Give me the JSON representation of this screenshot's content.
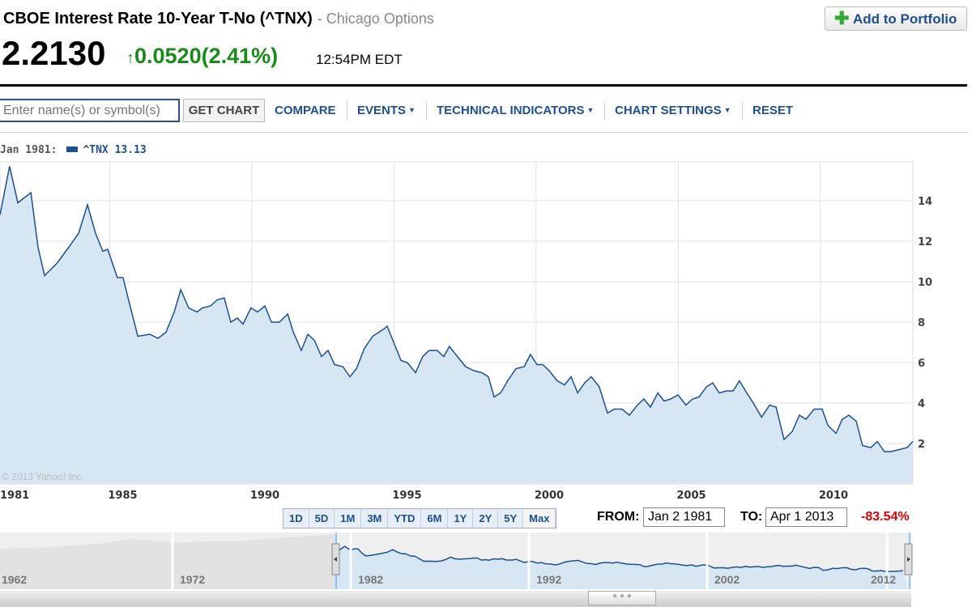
{
  "header": {
    "title": "CBOE Interest Rate 10-Year T-No (^TNX)",
    "exchange": "- Chicago Options",
    "price": "2.2130",
    "change": "0.0520",
    "change_pct": "(2.41%)",
    "time": "12:54PM EDT",
    "add_portfolio": "Add to Portfolio",
    "up_icon": "arrow-up-icon"
  },
  "toolbar": {
    "placeholder": "Enter name(s) or symbol(s)",
    "get_chart": "GET CHART",
    "items": [
      "COMPARE",
      "EVENTS",
      "TECHNICAL INDICATORS",
      "CHART SETTINGS",
      "RESET"
    ]
  },
  "legend": {
    "date": "Jan 1981:",
    "series": "^TNX 13.13"
  },
  "copyright": "© 2013 Yahoo! Inc.",
  "ranges": [
    "1D",
    "5D",
    "1M",
    "3M",
    "YTD",
    "6M",
    "1Y",
    "2Y",
    "5Y",
    "Max"
  ],
  "selected_range": "Max",
  "from_label": "FROM:",
  "from_value": "Jan 2 1981",
  "to_label": "TO:",
  "to_value": "Apr 1 2013",
  "period_change": "-83.54%",
  "navigator": {
    "labels": [
      "1962",
      "1972",
      "1982",
      "1992",
      "2002",
      "2012"
    ]
  },
  "colors": {
    "line": "#1d4f91",
    "fill": "#d6e6f3",
    "up": "#1a8a1a",
    "down": "#dd0000"
  },
  "chart_data": {
    "type": "area",
    "series": [
      {
        "name": "^TNX",
        "points": [
          [
            1981.14,
            13.3
          ],
          [
            1981.48,
            15.7
          ],
          [
            1981.77,
            13.9
          ],
          [
            1982.23,
            14.4
          ],
          [
            1982.48,
            11.7
          ],
          [
            1982.71,
            10.3
          ],
          [
            1983.14,
            10.9
          ],
          [
            1983.56,
            11.7
          ],
          [
            1983.91,
            12.4
          ],
          [
            1984.22,
            13.8
          ],
          [
            1984.5,
            12.4
          ],
          [
            1984.76,
            11.5
          ],
          [
            1984.93,
            11.6
          ],
          [
            1985.27,
            10.2
          ],
          [
            1985.47,
            10.2
          ],
          [
            1985.7,
            8.9
          ],
          [
            1985.99,
            7.3
          ],
          [
            1986.41,
            7.4
          ],
          [
            1986.7,
            7.2
          ],
          [
            1986.98,
            7.5
          ],
          [
            1987.27,
            8.5
          ],
          [
            1987.5,
            9.6
          ],
          [
            1987.78,
            8.7
          ],
          [
            1988.07,
            8.5
          ],
          [
            1988.26,
            8.7
          ],
          [
            1988.55,
            8.8
          ],
          [
            1988.78,
            9.1
          ],
          [
            1989.03,
            9.2
          ],
          [
            1989.26,
            8.0
          ],
          [
            1989.49,
            8.2
          ],
          [
            1989.69,
            7.9
          ],
          [
            1989.97,
            8.7
          ],
          [
            1990.2,
            8.5
          ],
          [
            1990.46,
            8.8
          ],
          [
            1990.69,
            8.0
          ],
          [
            1990.97,
            8.0
          ],
          [
            1991.26,
            8.4
          ],
          [
            1991.46,
            7.5
          ],
          [
            1991.74,
            6.6
          ],
          [
            1991.97,
            7.4
          ],
          [
            1992.2,
            7.1
          ],
          [
            1992.45,
            6.3
          ],
          [
            1992.68,
            6.6
          ],
          [
            1992.91,
            5.9
          ],
          [
            1993.2,
            5.8
          ],
          [
            1993.45,
            5.3
          ],
          [
            1993.68,
            5.7
          ],
          [
            1993.96,
            6.7
          ],
          [
            1994.25,
            7.3
          ],
          [
            1994.68,
            7.7
          ],
          [
            1994.76,
            7.8
          ],
          [
            1994.96,
            7.1
          ],
          [
            1995.25,
            6.1
          ],
          [
            1995.47,
            6.0
          ],
          [
            1995.76,
            5.5
          ],
          [
            1996.01,
            6.3
          ],
          [
            1996.24,
            6.6
          ],
          [
            1996.52,
            6.6
          ],
          [
            1996.75,
            6.3
          ],
          [
            1996.95,
            6.8
          ],
          [
            1997.23,
            6.3
          ],
          [
            1997.52,
            5.8
          ],
          [
            1997.81,
            5.6
          ],
          [
            1998.09,
            5.5
          ],
          [
            1998.32,
            5.3
          ],
          [
            1998.52,
            4.3
          ],
          [
            1998.75,
            4.5
          ],
          [
            1999.0,
            5.1
          ],
          [
            1999.29,
            5.7
          ],
          [
            1999.58,
            5.8
          ],
          [
            1999.8,
            6.4
          ],
          [
            2000.03,
            5.9
          ],
          [
            2000.23,
            5.9
          ],
          [
            2000.46,
            5.6
          ],
          [
            2000.74,
            5.1
          ],
          [
            2001.0,
            4.9
          ],
          [
            2001.23,
            5.3
          ],
          [
            2001.46,
            4.5
          ],
          [
            2001.71,
            5.0
          ],
          [
            2001.94,
            5.3
          ],
          [
            2002.22,
            4.8
          ],
          [
            2002.51,
            3.5
          ],
          [
            2002.74,
            3.7
          ],
          [
            2003.02,
            3.7
          ],
          [
            2003.28,
            3.4
          ],
          [
            2003.56,
            3.9
          ],
          [
            2003.79,
            4.2
          ],
          [
            2004.02,
            3.8
          ],
          [
            2004.28,
            4.5
          ],
          [
            2004.5,
            4.1
          ],
          [
            2004.73,
            4.2
          ],
          [
            2004.99,
            4.4
          ],
          [
            2005.27,
            3.9
          ],
          [
            2005.5,
            4.2
          ],
          [
            2005.73,
            4.3
          ],
          [
            2005.99,
            4.8
          ],
          [
            2006.21,
            5.0
          ],
          [
            2006.44,
            4.5
          ],
          [
            2006.7,
            4.6
          ],
          [
            2006.93,
            4.6
          ],
          [
            2007.15,
            5.1
          ],
          [
            2007.41,
            4.5
          ],
          [
            2007.64,
            4.0
          ],
          [
            2007.93,
            3.3
          ],
          [
            2008.21,
            3.9
          ],
          [
            2008.44,
            3.8
          ],
          [
            2008.72,
            2.2
          ],
          [
            2009.01,
            2.6
          ],
          [
            2009.26,
            3.4
          ],
          [
            2009.49,
            3.2
          ],
          [
            2009.78,
            3.7
          ],
          [
            2010.06,
            3.7
          ],
          [
            2010.26,
            2.9
          ],
          [
            2010.55,
            2.5
          ],
          [
            2010.77,
            3.2
          ],
          [
            2011.0,
            3.4
          ],
          [
            2011.26,
            3.1
          ],
          [
            2011.48,
            1.9
          ],
          [
            2011.77,
            1.8
          ],
          [
            2012.0,
            2.1
          ],
          [
            2012.25,
            1.6
          ],
          [
            2012.48,
            1.6
          ],
          [
            2012.77,
            1.7
          ],
          [
            2013.05,
            1.8
          ],
          [
            2013.25,
            2.1
          ]
        ]
      }
    ],
    "x_ticks": [
      "1981",
      "1985",
      "1990",
      "1995",
      "2000",
      "2005",
      "2010"
    ],
    "y_ticks": [
      "2",
      "4",
      "6",
      "8",
      "10",
      "12",
      "14"
    ],
    "xlim": [
      1981.0,
      2013.25
    ],
    "ylim": [
      0,
      16
    ],
    "grid": true,
    "y_axis": "right"
  }
}
